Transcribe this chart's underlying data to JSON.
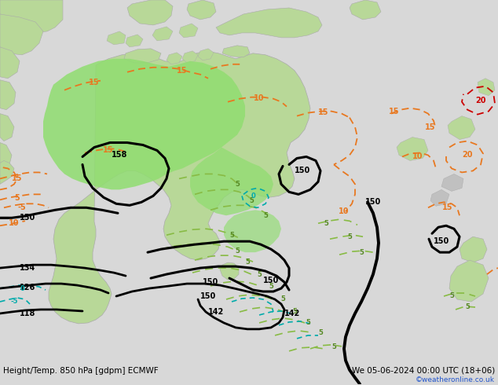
{
  "title_left": "Height/Temp. 850 hPa [gdpm] ECMWF",
  "title_right": "We 05-06-2024 00:00 UTC (18+06)",
  "watermark": "©weatheronline.co.uk",
  "bg_color": "#d8d8d8",
  "land_color": "#b8d898",
  "warm_green": "#90dd70",
  "sea_color": "#d0d0d0",
  "title_fontsize": 7.5,
  "watermark_fontsize": 6.5,
  "label_fontsize": 7,
  "orange": "#e87820",
  "red": "#cc0000",
  "green_contour": "#88bb44",
  "cyan_contour": "#00aaaa",
  "black": "#000000",
  "gray_land": "#c0c0c0"
}
